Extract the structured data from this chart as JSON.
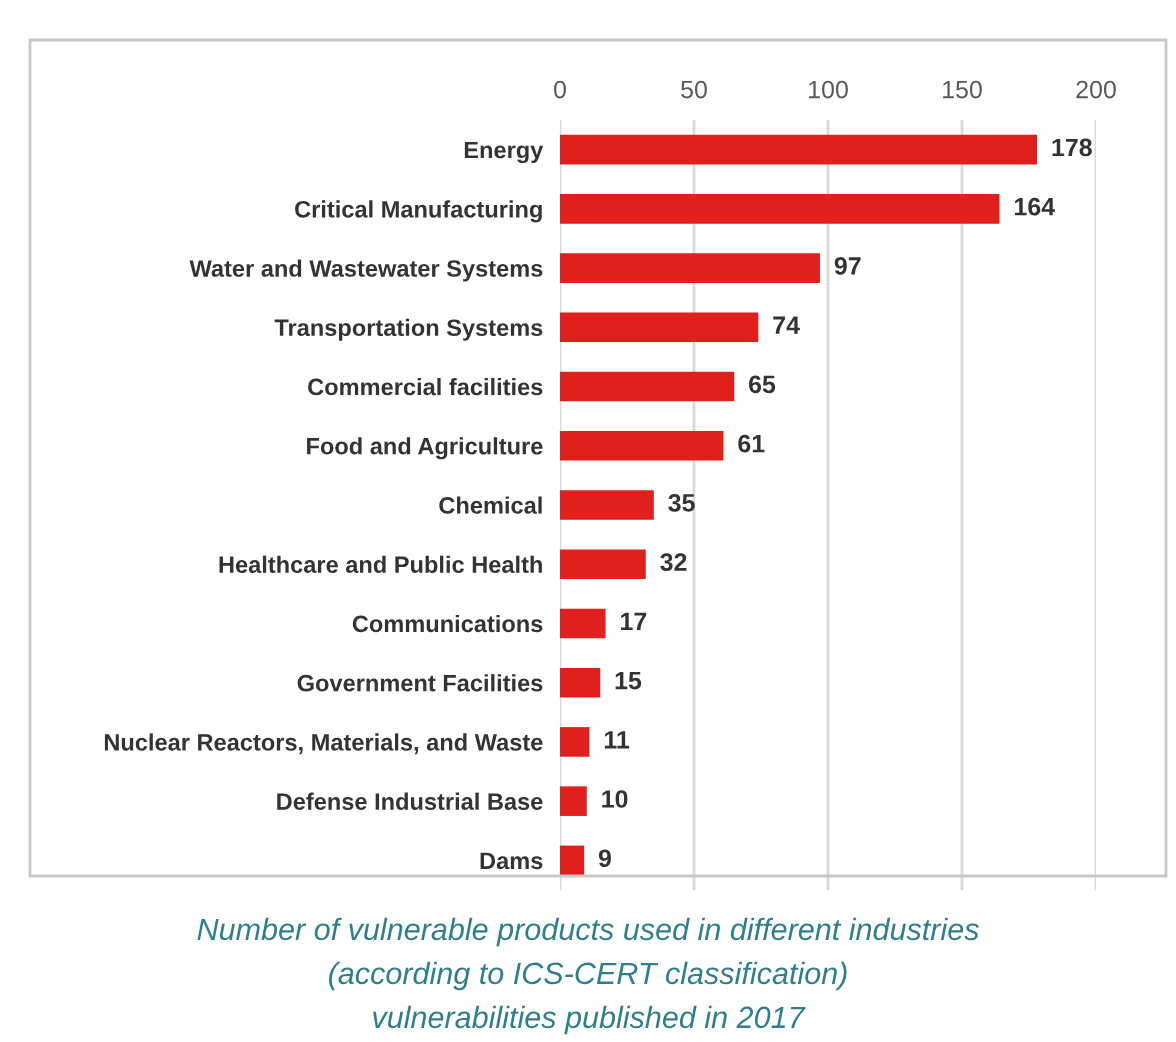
{
  "chart_data": {
    "type": "bar",
    "orientation": "horizontal",
    "categories": [
      "Energy",
      "Critical Manufacturing",
      "Water and Wastewater Systems",
      "Transportation Systems",
      "Commercial facilities",
      "Food and Agriculture",
      "Chemical",
      "Healthcare and Public Health",
      "Communications",
      "Government Facilities",
      "Nuclear Reactors, Materials, and Waste",
      "Defense Industrial Base",
      "Dams"
    ],
    "values": [
      178,
      164,
      97,
      74,
      65,
      61,
      35,
      32,
      17,
      15,
      11,
      10,
      9
    ],
    "color": "#e0201c",
    "xlim": [
      0,
      200
    ],
    "xticks": [
      0,
      50,
      100,
      150,
      200
    ],
    "grid": "x",
    "data_labels": true,
    "legend": false,
    "annotations": [
      "Number of vulnerable products used in different industries",
      "(according to ICS-CERT classification)",
      "vulnerabilities published in 2017"
    ]
  }
}
